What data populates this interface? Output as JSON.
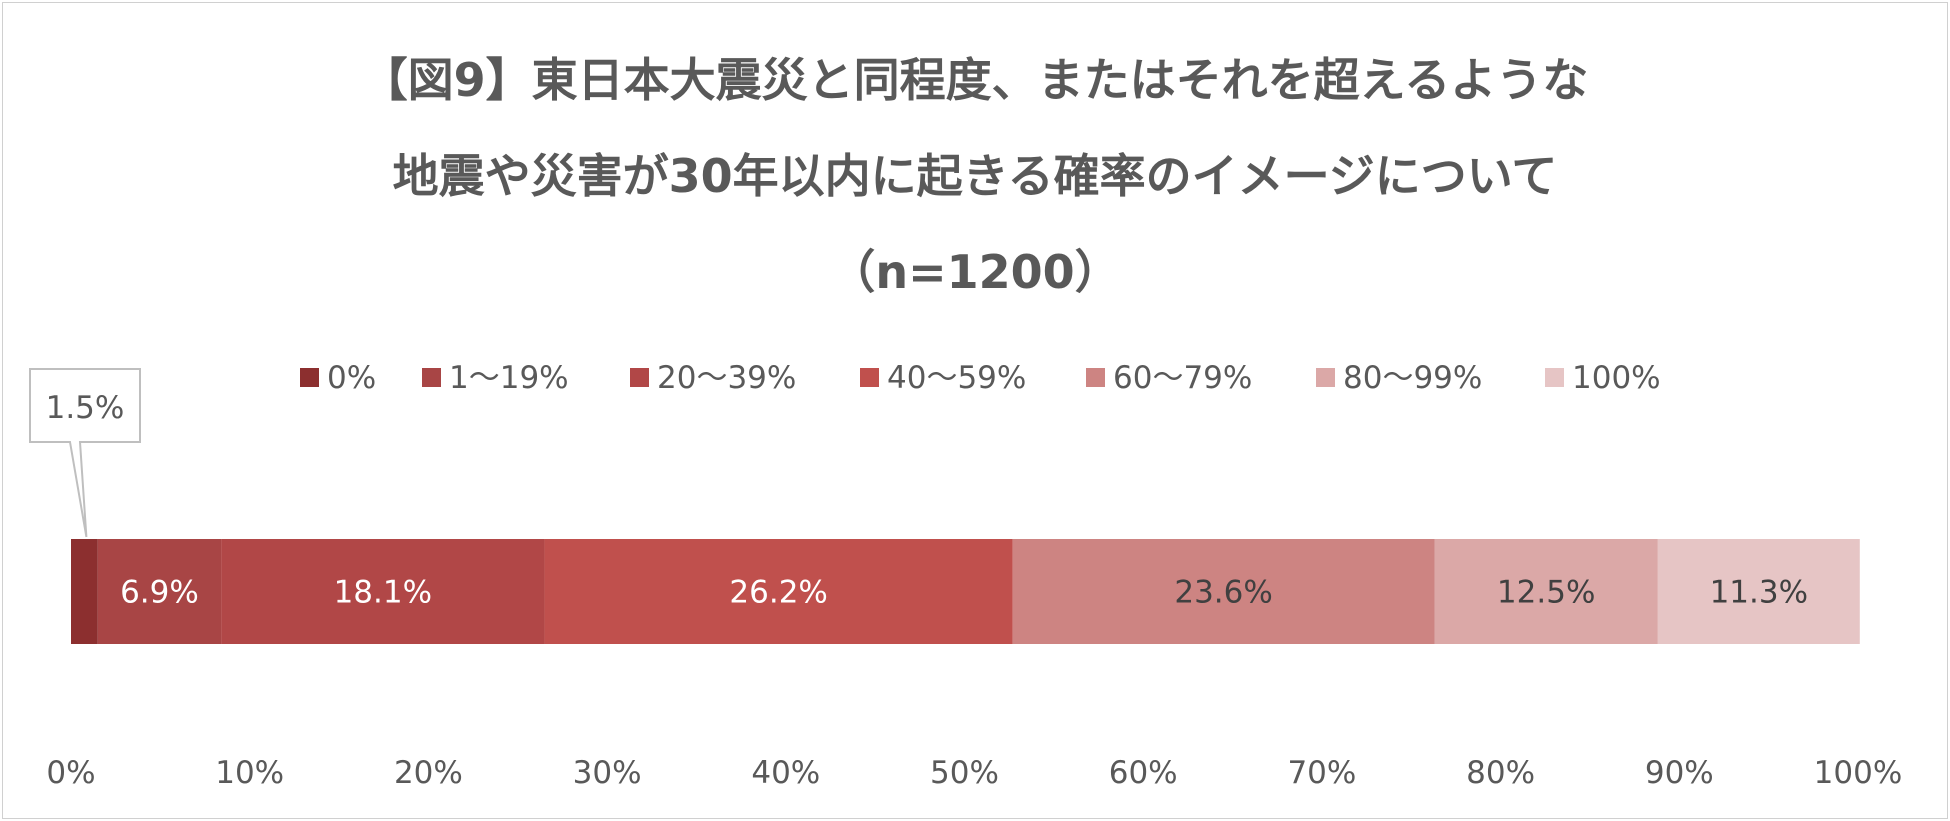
{
  "chart_data": {
    "type": "bar",
    "orientation": "horizontal-stacked-100",
    "title_lines": [
      "【図9】東日本大震災と同程度、またはそれを超えるような",
      "地震や災害が30年以内に起きる確率のイメージについて",
      "（n=1200）"
    ],
    "series": [
      {
        "name": "0%",
        "value": 1.5,
        "label": "1.5%",
        "color": "#8c2f2f"
      },
      {
        "name": "1～19%",
        "value": 6.9,
        "label": "6.9%",
        "color": "#a84545"
      },
      {
        "name": "20～39%",
        "value": 18.1,
        "label": "18.1%",
        "color": "#b14747"
      },
      {
        "name": "40～59%",
        "value": 26.2,
        "label": "26.2%",
        "color": "#c0504d"
      },
      {
        "name": "60～79%",
        "value": 23.6,
        "label": "23.6%",
        "color": "#cd8482"
      },
      {
        "name": "80～99%",
        "value": 12.5,
        "label": "12.5%",
        "color": "#dba8a7"
      },
      {
        "name": "100%",
        "value": 11.3,
        "label": "11.3%",
        "color": "#e6c5c5"
      }
    ],
    "x_ticks": [
      "0%",
      "10%",
      "20%",
      "30%",
      "40%",
      "50%",
      "60%",
      "70%",
      "80%",
      "90%",
      "100%"
    ],
    "xlim": [
      0,
      100
    ],
    "legend_position": "top",
    "grid": false,
    "callout_series": "0%"
  }
}
